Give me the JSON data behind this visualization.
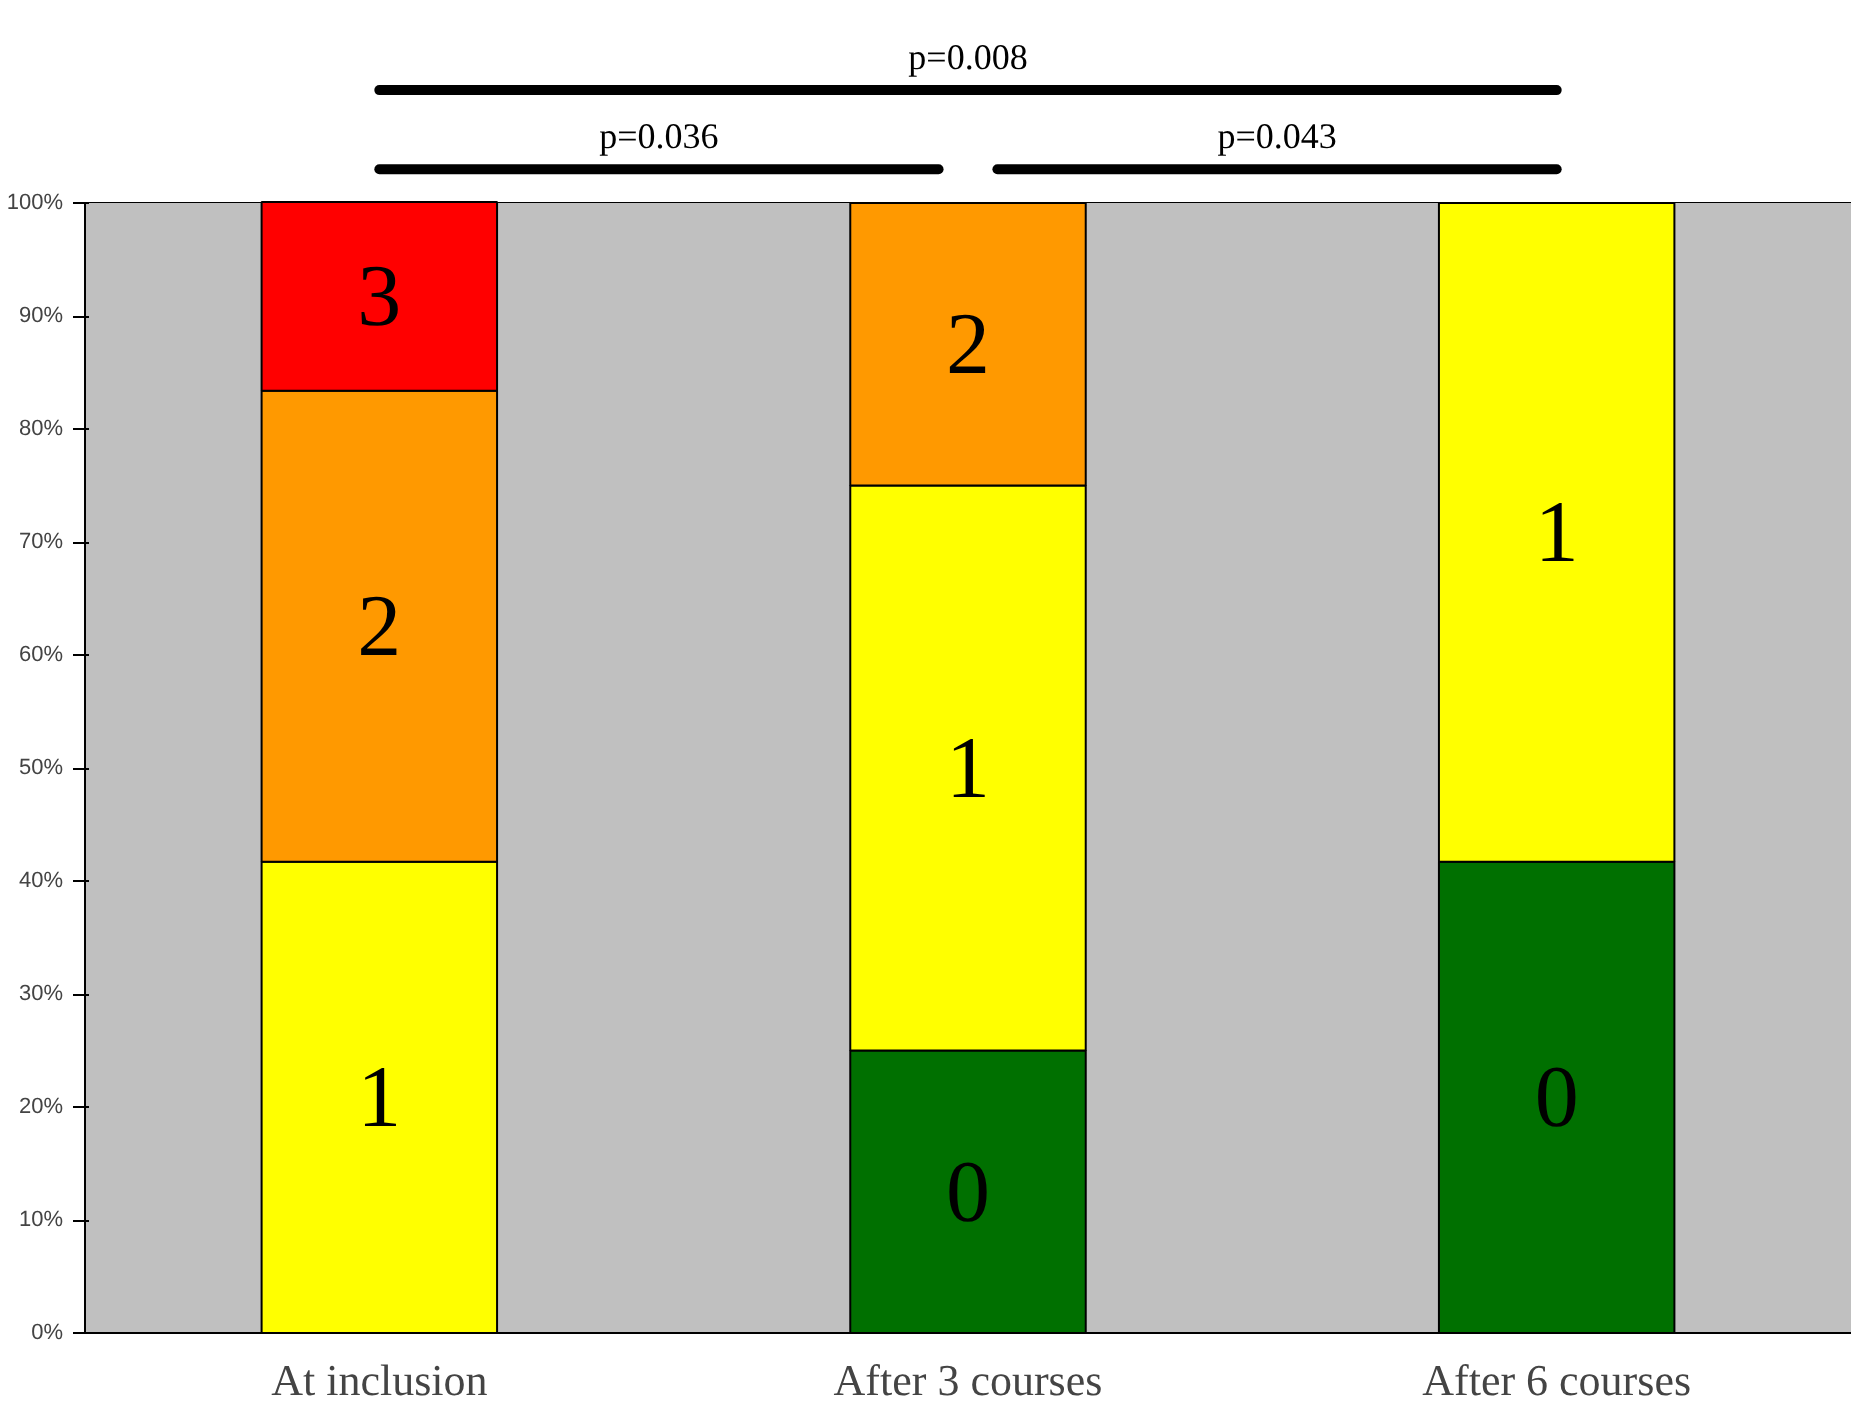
{
  "chart_data": {
    "type": "bar",
    "stacked": true,
    "categories": [
      "At inclusion",
      "After 3 courses",
      "After 6 courses"
    ],
    "series": [
      {
        "name": "0",
        "color": "#007000",
        "values": [
          null,
          25,
          41.7
        ]
      },
      {
        "name": "1",
        "color": "#ffff00",
        "values": [
          41.7,
          50,
          58.3
        ]
      },
      {
        "name": "2",
        "color": "#ff9900",
        "values": [
          41.7,
          25,
          null
        ]
      },
      {
        "name": "3",
        "color": "#ff0000",
        "values": [
          16.7,
          null,
          null
        ]
      }
    ],
    "ylim": [
      0,
      100
    ],
    "yticks": [
      {
        "value": 0,
        "label": "0%"
      },
      {
        "value": 10,
        "label": "10%"
      },
      {
        "value": 20,
        "label": "20%"
      },
      {
        "value": 30,
        "label": "30%"
      },
      {
        "value": 40,
        "label": "40%"
      },
      {
        "value": 50,
        "label": "50%"
      },
      {
        "value": 60,
        "label": "60%"
      },
      {
        "value": 70,
        "label": "70%"
      },
      {
        "value": 80,
        "label": "80%"
      },
      {
        "value": 90,
        "label": "90%"
      },
      {
        "value": 100,
        "label": "100%"
      }
    ],
    "grid": "y",
    "annotations": [
      "p=0.008",
      "p=0.036",
      "p=0.043"
    ]
  }
}
